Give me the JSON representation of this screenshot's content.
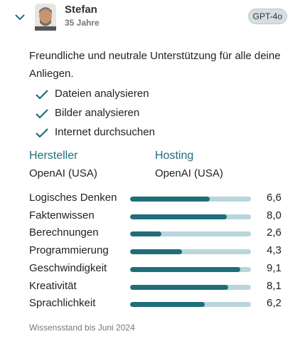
{
  "header": {
    "name": "Stefan",
    "age": "35 Jahre",
    "badge": "GPT-4o"
  },
  "description": "Freundliche und neutrale Unterstützung für alle deine Anliegen.",
  "features": [
    "Dateien analysieren",
    "Bilder analysieren",
    "Internet durchsuchen"
  ],
  "provider": {
    "maker_label": "Hersteller",
    "maker": "OpenAI (USA)",
    "hosting_label": "Hosting",
    "hosting": "OpenAI (USA)"
  },
  "chart_data": {
    "type": "bar",
    "categories": [
      "Logisches Denken",
      "Faktenwissen",
      "Berechnungen",
      "Programmierung",
      "Geschwindigkeit",
      "Kreativität",
      "Sprachlichkeit"
    ],
    "values": [
      6.6,
      8.0,
      2.6,
      4.3,
      9.1,
      8.1,
      6.2
    ],
    "value_labels": [
      "6,6",
      "8,0",
      "2,6",
      "4,3",
      "9,1",
      "8,1",
      "6,2"
    ],
    "xlim": [
      0,
      10
    ],
    "color": "#1f6e7a"
  },
  "footer": "Wissensstand bis Juni 2024"
}
